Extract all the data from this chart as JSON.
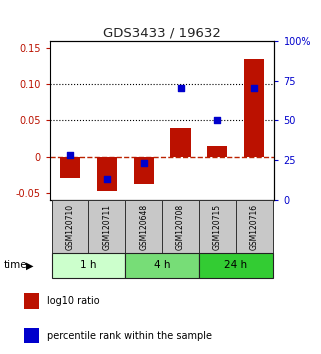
{
  "title": "GDS3433 / 19632",
  "categories": [
    "GSM120710",
    "GSM120711",
    "GSM120648",
    "GSM120708",
    "GSM120715",
    "GSM120716"
  ],
  "log10_ratio": [
    -0.03,
    -0.047,
    -0.038,
    0.04,
    0.015,
    0.135
  ],
  "percentile_rank": [
    28,
    13,
    23,
    70,
    50,
    70
  ],
  "ylim_left": [
    -0.06,
    0.16
  ],
  "ylim_right": [
    0,
    100
  ],
  "yticks_left": [
    -0.05,
    0.0,
    0.05,
    0.1,
    0.15
  ],
  "yticks_right": [
    0,
    25,
    50,
    75,
    100
  ],
  "ytick_labels_left": [
    "-0.05",
    "0",
    "0.05",
    "0.10",
    "0.15"
  ],
  "ytick_labels_right": [
    "0",
    "25",
    "50",
    "75",
    "100%"
  ],
  "bar_color": "#BB1100",
  "square_color": "#0000CC",
  "hline_color": "#BB2200",
  "dotted_line_color": "#000000",
  "dotted_lines": [
    0.05,
    0.1
  ],
  "time_groups": [
    {
      "label": "1 h",
      "cols": [
        0,
        1
      ],
      "color": "#CCFFCC"
    },
    {
      "label": "4 h",
      "cols": [
        2,
        3
      ],
      "color": "#77DD77"
    },
    {
      "label": "24 h",
      "cols": [
        4,
        5
      ],
      "color": "#33CC33"
    }
  ],
  "legend_bar_label": "log10 ratio",
  "legend_sq_label": "percentile rank within the sample",
  "time_label": "time",
  "bg_color": "#FFFFFF",
  "plot_bg_color": "#FFFFFF",
  "gsm_box_color": "#C8C8C8",
  "gsm_box_edge": "#333333",
  "bar_width": 0.55
}
